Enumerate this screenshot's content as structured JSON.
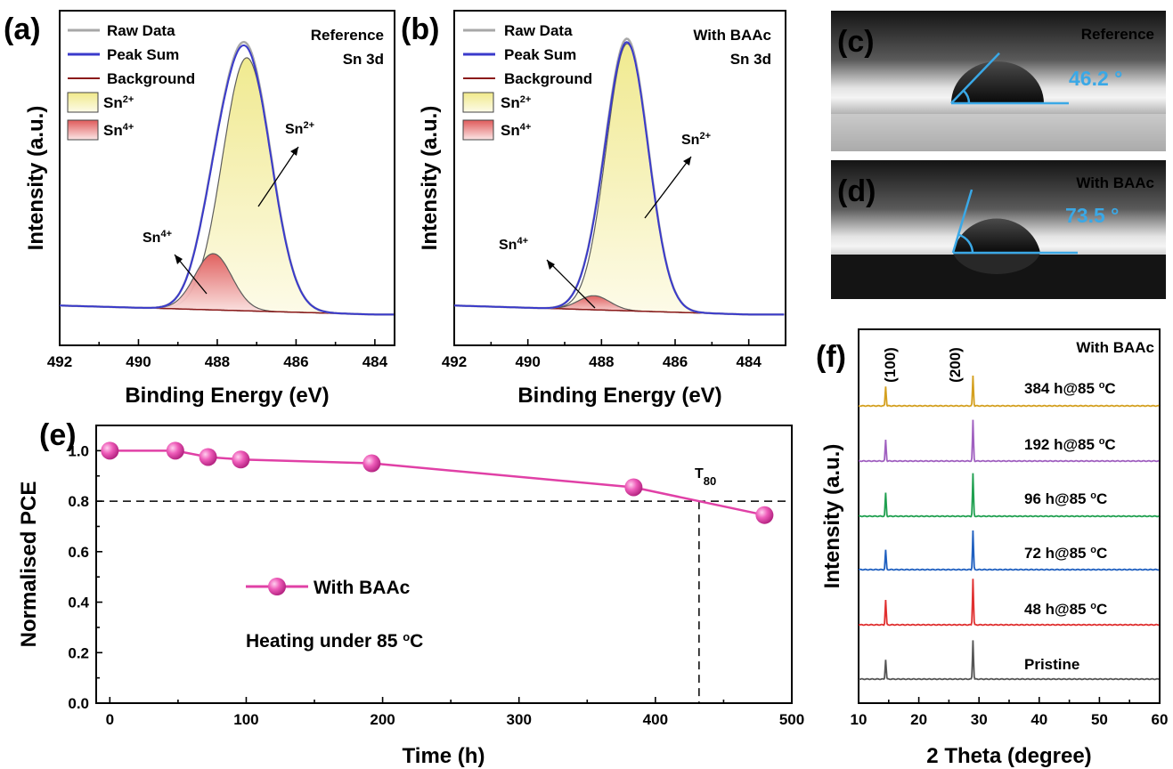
{
  "colors": {
    "raw": "#a8a8a8",
    "peak_sum": "#3a3acb",
    "background": "#8b1a1a",
    "sn2": "#f2ec9a",
    "sn4": "#e06a6a",
    "pce": "#e040a6",
    "contact_angle": "#3aa8e6",
    "xrd": [
      "#555555",
      "#e03030",
      "#2060c0",
      "#20a050",
      "#a060c0",
      "#d4a020"
    ]
  },
  "chart_data": [
    {
      "panel": "(a)",
      "type": "area",
      "note_top": "Reference",
      "note_sub": "Sn 3d",
      "xlabel": "Binding Energy (eV)",
      "ylabel": "Intensity (a.u.)",
      "xlim": [
        492,
        483.5
      ],
      "xticks": [
        492,
        490,
        488,
        486,
        484
      ],
      "legend": [
        "Raw Data",
        "Peak Sum",
        "Background",
        "Sn2+",
        "Sn4+"
      ],
      "peaks": [
        {
          "name": "Sn2+",
          "center": 487.25,
          "height": 0.9,
          "fwhm": 1.45
        },
        {
          "name": "Sn4+",
          "center": 488.1,
          "height": 0.2,
          "fwhm": 1.1
        }
      ],
      "annotations": [
        "Sn2+",
        "Sn4+"
      ]
    },
    {
      "panel": "(b)",
      "type": "area",
      "note_top": "With BAAc",
      "note_sub": "Sn 3d",
      "xlabel": "Binding Energy (eV)",
      "ylabel": "Intensity (a.u.)",
      "xlim": [
        492,
        483
      ],
      "xticks": [
        492,
        490,
        488,
        486,
        484
      ],
      "legend": [
        "Raw Data",
        "Peak Sum",
        "Background",
        "Sn2+",
        "Sn4+"
      ],
      "peaks": [
        {
          "name": "Sn2+",
          "center": 487.3,
          "height": 0.95,
          "fwhm": 1.35
        },
        {
          "name": "Sn4+",
          "center": 488.2,
          "height": 0.05,
          "fwhm": 1.0
        }
      ],
      "annotations": [
        "Sn2+",
        "Sn4+"
      ]
    },
    {
      "panel": "(e)",
      "type": "line",
      "xlabel": "Time (h)",
      "ylabel": "Normalised PCE",
      "xlim": [
        -10,
        500
      ],
      "ylim": [
        0,
        1.1
      ],
      "xticks": [
        0,
        100,
        200,
        300,
        400,
        500
      ],
      "yticks": [
        0.0,
        0.2,
        0.4,
        0.6,
        0.8,
        1.0
      ],
      "series": [
        {
          "name": "With BAAc",
          "x": [
            0,
            48,
            72,
            96,
            192,
            384,
            480
          ],
          "y": [
            1.0,
            1.0,
            0.975,
            0.965,
            0.95,
            0.855,
            0.745
          ]
        }
      ],
      "reference_y": 0.8,
      "reference_x": 432,
      "t80_label": "T80",
      "condition": "Heating under 85 °C"
    },
    {
      "panel": "(f)",
      "type": "line",
      "note_top": "With BAAc",
      "xlabel": "2 Theta (degree)",
      "ylabel": "Intensity (a.u.)",
      "xlim": [
        10,
        60
      ],
      "xticks": [
        10,
        20,
        30,
        40,
        50,
        60
      ],
      "peak_labels": [
        {
          "label": "(100)",
          "x": 14.5
        },
        {
          "label": "(200)",
          "x": 29.0
        }
      ],
      "series": [
        {
          "name": "Pristine"
        },
        {
          "name": "48 h@85 °C"
        },
        {
          "name": "72 h@85 °C"
        },
        {
          "name": "96 h@85 °C"
        },
        {
          "name": "192 h@85 °C"
        },
        {
          "name": "384 h@85 °C"
        }
      ]
    }
  ],
  "photos": [
    {
      "panel": "(c)",
      "title": "Reference",
      "angle": "46.2 °",
      "angle_deg": 46.2
    },
    {
      "panel": "(d)",
      "title": "With BAAc",
      "angle": "73.5 °",
      "angle_deg": 73.5
    }
  ]
}
